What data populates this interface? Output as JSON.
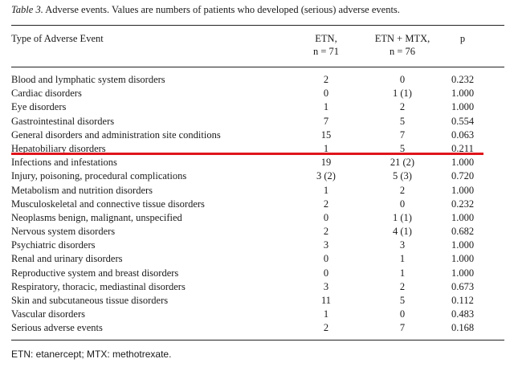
{
  "caption": {
    "label": "Table 3.",
    "text": "Adverse events. Values are numbers of patients who developed (serious) adverse events."
  },
  "header": {
    "col1": "Type of Adverse Event",
    "col2_line1": "ETN,",
    "col2_line2": "n = 71",
    "col3_line1": "ETN + MTX,",
    "col3_line2": "n = 76",
    "col4": "p"
  },
  "rows": [
    {
      "name": "Blood and lymphatic system disorders",
      "etn": "2",
      "etn_mtx": "0",
      "p": "0.232"
    },
    {
      "name": "Cardiac disorders",
      "etn": "0",
      "etn_mtx": "1 (1)",
      "p": "1.000"
    },
    {
      "name": "Eye disorders",
      "etn": "1",
      "etn_mtx": "2",
      "p": "1.000"
    },
    {
      "name": "Gastrointestinal disorders",
      "etn": "7",
      "etn_mtx": "5",
      "p": "0.554"
    },
    {
      "name": "General disorders and administration site conditions",
      "etn": "15",
      "etn_mtx": "7",
      "p": "0.063"
    },
    {
      "name": "Hepatobiliary disorders",
      "etn": "1",
      "etn_mtx": "5",
      "p": "0.211"
    },
    {
      "name": "Infections and infestations",
      "etn": "19",
      "etn_mtx": "21 (2)",
      "p": "1.000"
    },
    {
      "name": "Injury, poisoning, procedural complications",
      "etn": "3 (2)",
      "etn_mtx": "5 (3)",
      "p": "0.720"
    },
    {
      "name": "Metabolism and nutrition disorders",
      "etn": "1",
      "etn_mtx": "2",
      "p": "1.000"
    },
    {
      "name": "Musculoskeletal and connective tissue disorders",
      "etn": "2",
      "etn_mtx": "0",
      "p": "0.232"
    },
    {
      "name": "Neoplasms benign, malignant, unspecified",
      "etn": "0",
      "etn_mtx": "1 (1)",
      "p": "1.000"
    },
    {
      "name": "Nervous system disorders",
      "etn": "2",
      "etn_mtx": "4 (1)",
      "p": "0.682"
    },
    {
      "name": "Psychiatric disorders",
      "etn": "3",
      "etn_mtx": "3",
      "p": "1.000"
    },
    {
      "name": "Renal and urinary disorders",
      "etn": "0",
      "etn_mtx": "1",
      "p": "1.000"
    },
    {
      "name": "Reproductive system and breast disorders",
      "etn": "0",
      "etn_mtx": "1",
      "p": "1.000"
    },
    {
      "name": "Respiratory, thoracic, mediastinal disorders",
      "etn": "3",
      "etn_mtx": "2",
      "p": "0.673"
    },
    {
      "name": "Skin and subcutaneous tissue disorders",
      "etn": "11",
      "etn_mtx": "5",
      "p": "0.112"
    },
    {
      "name": "Vascular disorders",
      "etn": "1",
      "etn_mtx": "0",
      "p": "0.483"
    },
    {
      "name": "Serious adverse events",
      "etn": "2",
      "etn_mtx": "7",
      "p": "0.168"
    }
  ],
  "footnote": "ETN: etanercept; MTX: methotrexate.",
  "colors": {
    "highlight_line": "#e0141a",
    "text": "#1a1a1a"
  }
}
